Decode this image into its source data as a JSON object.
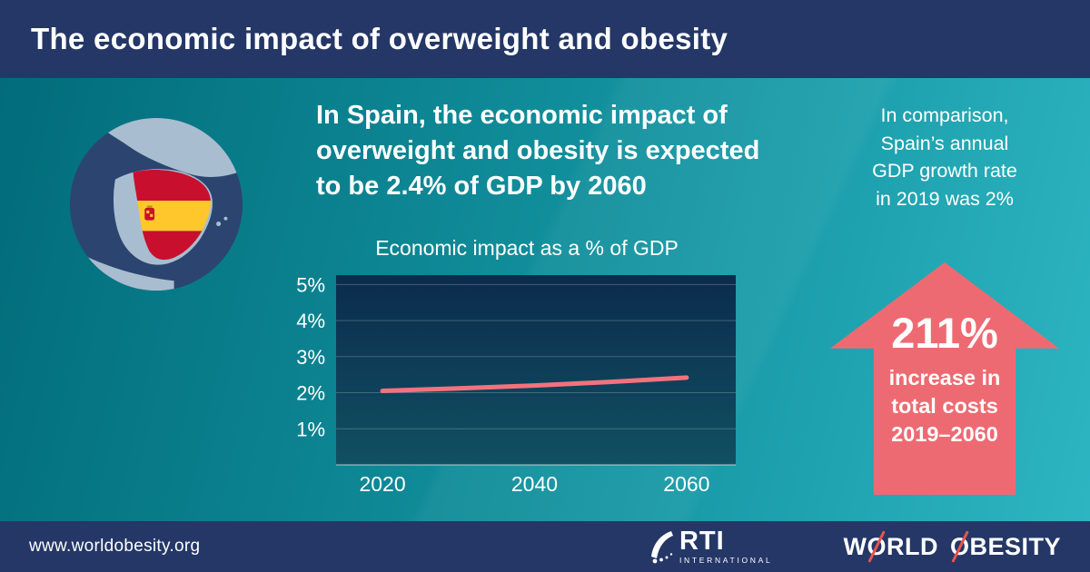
{
  "header": {
    "title": "The economic impact of overweight and obesity"
  },
  "headline": {
    "lines": [
      "In Spain, the economic impact of",
      "overweight and obesity is expected",
      "to be 2.4% of GDP by 2060"
    ]
  },
  "comparison": {
    "lines": [
      "In comparison,",
      "Spain’s annual",
      "GDP growth rate",
      "in 2019 was 2%"
    ]
  },
  "arrow": {
    "value": "211%",
    "lines": [
      "increase in",
      "total costs",
      "2019–2060"
    ]
  },
  "chart_data": {
    "type": "line",
    "title": "Economic impact as a % of GDP",
    "series_name": "Economic impact as a % of GDP (Spain)",
    "x": [
      2020,
      2030,
      2040,
      2050,
      2060
    ],
    "values": [
      2.05,
      2.12,
      2.2,
      2.3,
      2.42
    ],
    "xticks": [
      2020,
      2040,
      2060
    ],
    "xtick_labels": [
      "2020",
      "2040",
      "2060"
    ],
    "yticks": [
      1,
      2,
      3,
      4,
      5
    ],
    "ytick_labels": [
      "1%",
      "2%",
      "3%",
      "4%",
      "5%"
    ],
    "ylim": [
      0,
      5.26
    ],
    "xlabel": "",
    "ylabel": "% of GDP",
    "grid": true,
    "legend": "none",
    "line_color": "#f2727d"
  },
  "footer": {
    "url": "www.worldobesity.org",
    "rti": {
      "name": "RTI",
      "sub": "INTERNATIONAL"
    },
    "world_obesity": {
      "segments": [
        "W",
        "O",
        "RLD",
        "O",
        "BESITY"
      ]
    }
  },
  "colors": {
    "navy": "#243767",
    "teal_start": "#016b7a",
    "teal_end": "#2eb6c3",
    "accent_coral": "#ee6a72",
    "chart_line": "#f2727d",
    "flag_red": "#c8102e",
    "flag_yellow": "#ffc72c",
    "logo_slash_red": "#e9544e"
  }
}
